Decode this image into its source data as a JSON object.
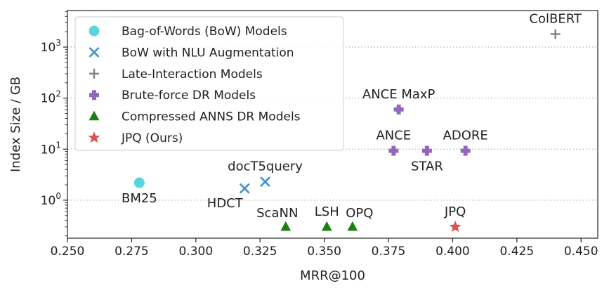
{
  "chart_data": {
    "type": "scatter",
    "xlabel": "MRR@100",
    "ylabel": "Index Size / GB",
    "xlim": [
      0.25,
      0.4565
    ],
    "ylim": [
      0.18,
      5200
    ],
    "y_scale": "log",
    "x_ticks": [
      0.25,
      0.275,
      0.3,
      0.325,
      0.35,
      0.375,
      0.4,
      0.425,
      0.45
    ],
    "x_tick_labels": [
      "0.250",
      "0.275",
      "0.300",
      "0.325",
      "0.350",
      "0.375",
      "0.400",
      "0.425",
      "0.450"
    ],
    "y_ticks": [
      {
        "value": 1,
        "base": "10",
        "exp": "0"
      },
      {
        "value": 10,
        "base": "10",
        "exp": "1"
      },
      {
        "value": 100,
        "base": "10",
        "exp": "2"
      },
      {
        "value": 1000,
        "base": "10",
        "exp": "3"
      }
    ],
    "grid": "horizontal dotted at major y ticks",
    "legend_position": "top-left",
    "series": [
      {
        "name": "Bag-of-Words (BoW) Models",
        "marker": "circle",
        "color": "#5bd5dc",
        "points": [
          {
            "label": "BM25",
            "x": 0.278,
            "y": 2.2,
            "label_pos": "below"
          }
        ]
      },
      {
        "name": "BoW with NLU Augmentation",
        "marker": "x",
        "color": "#3c93c6",
        "points": [
          {
            "label": "HDCT",
            "x": 0.319,
            "y": 1.7,
            "label_pos": "below-left"
          },
          {
            "label": "docT5query",
            "x": 0.327,
            "y": 2.3,
            "label_pos": "above"
          }
        ]
      },
      {
        "name": "Late-Interaction Models",
        "marker": "plus-thin",
        "color": "#808080",
        "points": [
          {
            "label": "ColBERT",
            "x": 0.44,
            "y": 1800,
            "label_pos": "above"
          }
        ]
      },
      {
        "name": "Brute-force DR Models",
        "marker": "plus-thick",
        "color": "#9467bd",
        "points": [
          {
            "label": "ANCE MaxP",
            "x": 0.379,
            "y": 60,
            "label_pos": "above"
          },
          {
            "label": "ANCE",
            "x": 0.377,
            "y": 9.3,
            "label_pos": "above"
          },
          {
            "label": "STAR",
            "x": 0.39,
            "y": 9.3,
            "label_pos": "below"
          },
          {
            "label": "ADORE",
            "x": 0.405,
            "y": 9.3,
            "label_pos": "above"
          }
        ]
      },
      {
        "name": "Compressed ANNS DR Models",
        "marker": "triangle",
        "color": "#1a8010",
        "points": [
          {
            "label": "ScaNN",
            "x": 0.335,
            "y": 0.3,
            "label_pos": "above-left"
          },
          {
            "label": "LSH",
            "x": 0.351,
            "y": 0.3,
            "label_pos": "above"
          },
          {
            "label": "OPQ",
            "x": 0.361,
            "y": 0.3,
            "label_pos": "above-right"
          }
        ]
      },
      {
        "name": "JPQ (Ours)",
        "marker": "star",
        "color": "#d9534f",
        "points": [
          {
            "label": "JPQ",
            "x": 0.401,
            "y": 0.3,
            "label_pos": "above"
          }
        ]
      }
    ]
  }
}
